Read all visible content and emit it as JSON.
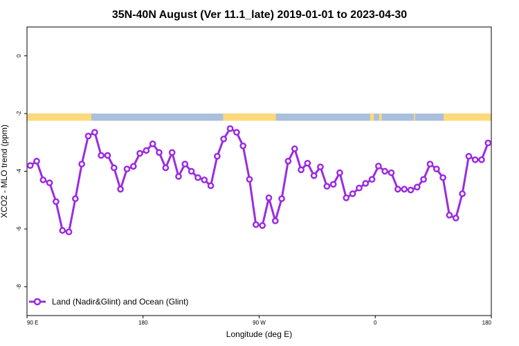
{
  "chart_data": {
    "type": "line",
    "title": "35N-40N August (Ver 11.1_late)   2019-01-01 to 2023-04-30",
    "xlabel": "Longitude (deg E)",
    "ylabel": "XCO2 - MLO trend (ppm)",
    "xlim": [
      90,
      450
    ],
    "ylim": [
      -9,
      1
    ],
    "x_ticks": [
      {
        "value": 90,
        "label": "90 E"
      },
      {
        "value": 180,
        "label": "180"
      },
      {
        "value": 270,
        "label": "90 W"
      },
      {
        "value": 360,
        "label": "0"
      },
      {
        "value": 450,
        "label": "180"
      }
    ],
    "y_ticks": [
      {
        "value": 0,
        "label": "0"
      },
      {
        "value": -2,
        "label": "-2"
      },
      {
        "value": -4,
        "label": "-4"
      },
      {
        "value": -6,
        "label": "-6"
      },
      {
        "value": -8,
        "label": "-8"
      }
    ],
    "grid": false,
    "legend_position": "bottom-left",
    "land_ocean_bar": {
      "y_range": [
        -2.25,
        -2.0
      ],
      "land_color": "#fcd97a",
      "ocean_color": "#a9bfdc",
      "land_segments": [
        [
          90,
          140
        ],
        [
          242,
          283
        ],
        [
          356,
          359
        ],
        [
          363,
          365
        ],
        [
          390,
          391
        ],
        [
          413,
          470
        ]
      ]
    },
    "series": [
      {
        "name": "Land (Nadir&Glint) and Ocean (Glint)",
        "color": "#9a2be2",
        "x": [
          92.5,
          97.5,
          102.5,
          107.5,
          112.5,
          117.5,
          122.5,
          127.5,
          132.5,
          137.5,
          142.5,
          147.5,
          152.5,
          157.5,
          162.5,
          167.5,
          172.5,
          177.5,
          182.5,
          187.5,
          192.5,
          197.5,
          202.5,
          207.5,
          212.5,
          217.5,
          222.5,
          227.5,
          232.5,
          237.5,
          242.5,
          247.5,
          252.5,
          257.5,
          262.5,
          267.5,
          272.5,
          277.5,
          282.5,
          287.5,
          292.5,
          297.5,
          302.5,
          307.5,
          312.5,
          317.5,
          322.5,
          327.5,
          332.5,
          337.5,
          342.5,
          347.5,
          352.5,
          357.5,
          362.5,
          367.5,
          372.5,
          377.5,
          382.5,
          387.5,
          392.5,
          397.5,
          402.5,
          407.5,
          412.5,
          417.5,
          422.5,
          427.5,
          432.5,
          437.5,
          442.5,
          447.5
        ],
        "values": [
          -3.8,
          -3.65,
          -4.3,
          -4.4,
          -5.05,
          -6.05,
          -6.1,
          -4.95,
          -3.75,
          -2.78,
          -2.65,
          -3.45,
          -3.45,
          -3.88,
          -4.62,
          -3.92,
          -3.83,
          -3.38,
          -3.28,
          -3.05,
          -3.35,
          -3.88,
          -3.35,
          -4.18,
          -3.75,
          -4.0,
          -4.22,
          -4.3,
          -4.5,
          -3.48,
          -2.88,
          -2.52,
          -2.65,
          -3.12,
          -4.28,
          -5.85,
          -5.88,
          -4.92,
          -5.72,
          -4.95,
          -3.65,
          -3.22,
          -3.95,
          -3.72,
          -4.15,
          -3.85,
          -4.52,
          -4.45,
          -4.05,
          -4.92,
          -4.78,
          -4.58,
          -4.42,
          -4.28,
          -3.82,
          -4.0,
          -4.05,
          -4.62,
          -4.62,
          -4.65,
          -4.55,
          -4.28,
          -3.75,
          -3.92,
          -4.22,
          -5.52,
          -5.62,
          -4.78,
          -3.48,
          -3.6,
          -3.6,
          -3.02
        ]
      }
    ]
  }
}
